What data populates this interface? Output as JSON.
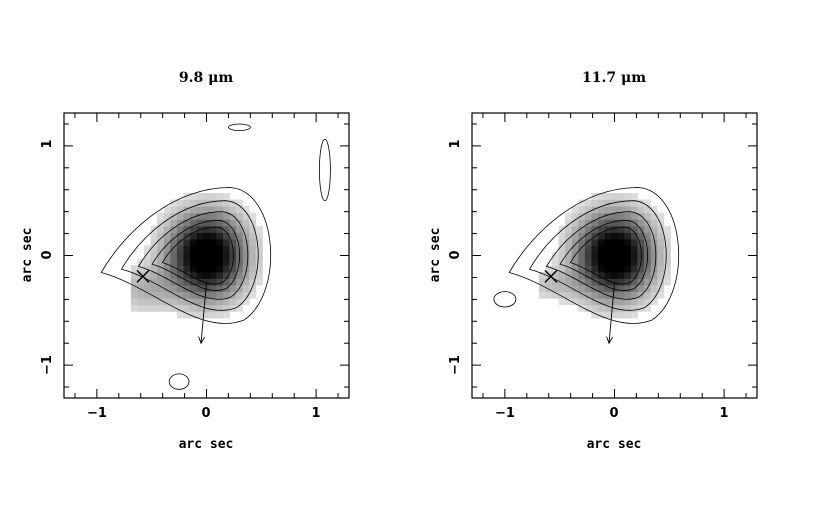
{
  "chart_data": [
    {
      "type": "heatmap",
      "title": "9.8 μm",
      "xlabel": "arc sec",
      "ylabel": "arc sec",
      "xlim": [
        -1.3,
        1.3
      ],
      "ylim": [
        -1.3,
        1.3
      ],
      "xticks": [
        -1,
        0,
        1
      ],
      "yticks": [
        -1,
        0,
        1
      ],
      "xtick_labels": [
        "−1",
        "0",
        "1"
      ],
      "ytick_labels": [
        "−1",
        "0",
        "1"
      ],
      "colormap": "grayscale",
      "peak": [
        0.0,
        0.0
      ],
      "contour_levels": 5,
      "marker": {
        "symbol": "cross",
        "x": -0.58,
        "y": -0.19
      },
      "arrow": {
        "from": [
          0.0,
          -0.25
        ],
        "to": [
          -0.05,
          -0.8
        ]
      },
      "extra_contours": [
        {
          "x": 1.08,
          "y": 0.78
        },
        {
          "x": 0.3,
          "y": 1.17
        },
        {
          "x": -0.25,
          "y": -1.15
        }
      ]
    },
    {
      "type": "heatmap",
      "title": "11.7 μm",
      "xlabel": "arc sec",
      "ylabel": "arc sec",
      "xlim": [
        -1.3,
        1.3
      ],
      "ylim": [
        -1.3,
        1.3
      ],
      "xticks": [
        -1,
        0,
        1
      ],
      "yticks": [
        -1,
        0,
        1
      ],
      "xtick_labels": [
        "−1",
        "0",
        "1"
      ],
      "ytick_labels": [
        "−1",
        "0",
        "1"
      ],
      "colormap": "grayscale",
      "peak": [
        0.0,
        0.0
      ],
      "contour_levels": 5,
      "marker": {
        "symbol": "cross",
        "x": -0.58,
        "y": -0.19
      },
      "arrow": {
        "from": [
          0.0,
          -0.25
        ],
        "to": [
          -0.05,
          -0.8
        ]
      },
      "extra_contours": [
        {
          "x": -1.0,
          "y": -0.4
        }
      ]
    }
  ]
}
